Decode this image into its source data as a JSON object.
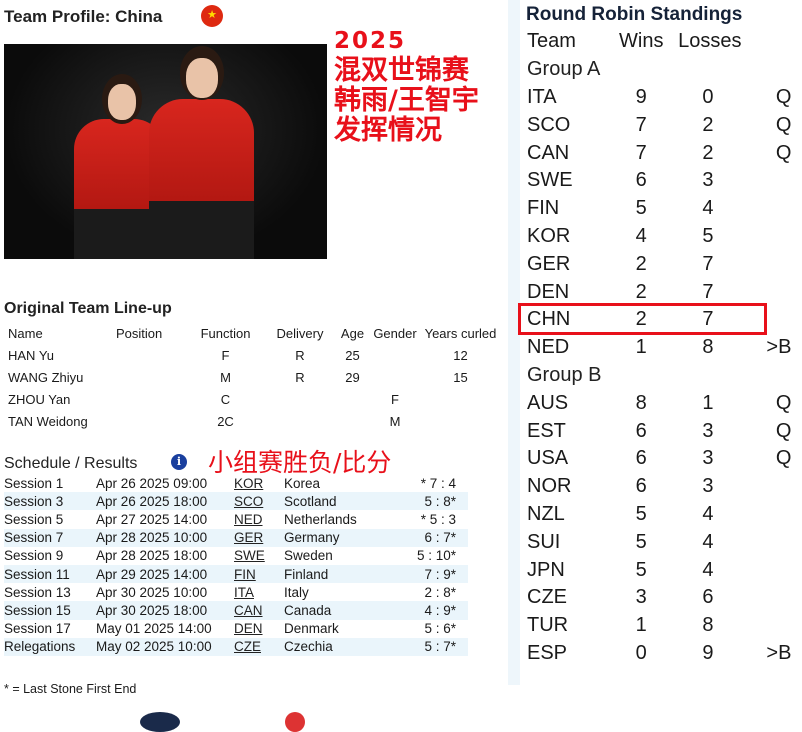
{
  "profile": {
    "title": "Team Profile: China",
    "flag_icon": "china-flag-icon"
  },
  "overlay_text": {
    "year": "2025",
    "lines": [
      "混双世锦赛",
      "韩雨/王智宇",
      "发挥情况"
    ],
    "color": "#e8101a"
  },
  "lineup": {
    "title": "Original Team Line-up",
    "headers": [
      "Name",
      "Position",
      "Function",
      "Delivery",
      "Age",
      "Gender",
      "Years curled"
    ],
    "rows": [
      [
        "HAN Yu",
        "",
        "F",
        "R",
        "25",
        "",
        "12"
      ],
      [
        "WANG Zhiyu",
        "",
        "M",
        "R",
        "29",
        "",
        "15"
      ],
      [
        "ZHOU Yan",
        "",
        "C",
        "",
        "",
        "F",
        ""
      ],
      [
        "TAN Weidong",
        "",
        "2C",
        "",
        "",
        "M",
        ""
      ]
    ]
  },
  "schedule": {
    "title": "Schedule / Results",
    "note": "小组赛胜负/比分",
    "rows": [
      [
        "Session 1",
        "Apr 26 2025 09:00",
        "KOR",
        "Korea",
        "* 7 : 4"
      ],
      [
        "Session 3",
        "Apr 26 2025 18:00",
        "SCO",
        "Scotland",
        "5 : 8*"
      ],
      [
        "Session 5",
        "Apr 27 2025 14:00",
        "NED",
        "Netherlands",
        "* 5 : 3"
      ],
      [
        "Session 7",
        "Apr 28 2025 10:00",
        "GER",
        "Germany",
        "6 : 7*"
      ],
      [
        "Session 9",
        "Apr 28 2025 18:00",
        "SWE",
        "Sweden",
        "5 : 10*"
      ],
      [
        "Session 11",
        "Apr 29 2025 14:00",
        "FIN",
        "Finland",
        "7 : 9*"
      ],
      [
        "Session 13",
        "Apr 30 2025 10:00",
        "ITA",
        "Italy",
        "2 : 8*"
      ],
      [
        "Session 15",
        "Apr 30 2025 18:00",
        "CAN",
        "Canada",
        "4 : 9*"
      ],
      [
        "Session 17",
        "May 01 2025 14:00",
        "DEN",
        "Denmark",
        "5 : 6*"
      ],
      [
        "Relegations",
        "May 02 2025 10:00",
        "CZE",
        "Czechia",
        "5 : 7*"
      ]
    ],
    "footnote": "* = Last Stone First End"
  },
  "standings": {
    "title": "Round Robin Standings",
    "headers": [
      "Team",
      "Wins",
      "Losses",
      ""
    ],
    "groups": [
      {
        "name": "Group A",
        "rows": [
          [
            "ITA",
            "9",
            "0",
            "Q"
          ],
          [
            "SCO",
            "7",
            "2",
            "Q"
          ],
          [
            "CAN",
            "7",
            "2",
            "Q"
          ],
          [
            "SWE",
            "6",
            "3",
            ""
          ],
          [
            "FIN",
            "5",
            "4",
            ""
          ],
          [
            "KOR",
            "4",
            "5",
            ""
          ],
          [
            "GER",
            "2",
            "7",
            ""
          ],
          [
            "DEN",
            "2",
            "7",
            ""
          ],
          [
            "CHN",
            "2",
            "7",
            ""
          ],
          [
            "NED",
            "1",
            "8",
            ">B"
          ]
        ]
      },
      {
        "name": "Group B",
        "rows": [
          [
            "AUS",
            "8",
            "1",
            "Q"
          ],
          [
            "EST",
            "6",
            "3",
            "Q"
          ],
          [
            "USA",
            "6",
            "3",
            "Q"
          ],
          [
            "NOR",
            "6",
            "3",
            ""
          ],
          [
            "NZL",
            "5",
            "4",
            ""
          ],
          [
            "SUI",
            "5",
            "4",
            ""
          ],
          [
            "JPN",
            "5",
            "4",
            ""
          ],
          [
            "CZE",
            "3",
            "6",
            ""
          ],
          [
            "TUR",
            "1",
            "8",
            ""
          ],
          [
            "ESP",
            "0",
            "9",
            ">B"
          ]
        ]
      }
    ],
    "highlighted_team": "CHN",
    "highlight_color": "#e8101a"
  }
}
